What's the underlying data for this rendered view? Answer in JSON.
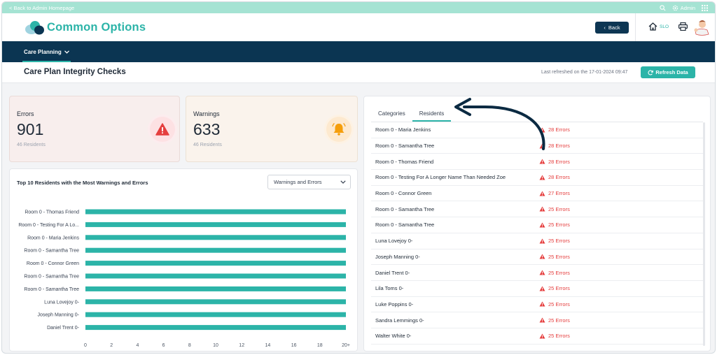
{
  "topbar": {
    "back_label": "< Back to Admin Homepage",
    "admin_label": "Admin"
  },
  "header": {
    "brand": "Common Options",
    "back_button": "Back",
    "home_label": "SLO"
  },
  "nav": {
    "items": [
      {
        "label": "Care Planning"
      }
    ]
  },
  "page": {
    "title": "Care Plan Integrity Checks",
    "last_refreshed": "Last refreshed on the 17-01-2024 09:47",
    "refresh_button": "Refresh Data"
  },
  "kpis": {
    "errors": {
      "label": "Errors",
      "value": "901",
      "sub": "46 Residents"
    },
    "warnings": {
      "label": "Warnings",
      "value": "633",
      "sub": "46 Residents"
    }
  },
  "chart_card": {
    "title": "Top 10 Residents with the Most Warnings and Errors",
    "filter": "Warnings and Errors"
  },
  "chart_data": {
    "type": "bar",
    "orientation": "horizontal",
    "categories": [
      "Room 0 - Thomas Friend",
      "Room 0 - Testing For A Lo...",
      "Room 0 - Maria Jenkins",
      "Room 0 - Samantha Tree",
      "Room 0 - Connor Green",
      "Room 0 - Samantha Tree",
      "Room 0 - Samantha Tree",
      "Luna Lovejoy 0-",
      "Joseph Manning 0-",
      "Daniel Trent 0-"
    ],
    "values": [
      20,
      20,
      20,
      20,
      20,
      20,
      20,
      20,
      20,
      20
    ],
    "x_ticks": [
      "0",
      "2",
      "4",
      "6",
      "8",
      "10",
      "12",
      "14",
      "16",
      "18",
      "20+"
    ],
    "xlim": [
      0,
      20
    ],
    "grid": false,
    "bar_color": "#2cb4a8"
  },
  "residents": {
    "tabs": [
      {
        "label": "Categories"
      },
      {
        "label": "Residents"
      }
    ],
    "rows": [
      {
        "name": "Room 0 - Maria Jenkins",
        "errors": "28 Errors"
      },
      {
        "name": "Room 0 - Samantha Tree",
        "errors": "28 Errors"
      },
      {
        "name": "Room 0 - Thomas Friend",
        "errors": "28 Errors"
      },
      {
        "name": "Room 0 - Testing For A Longer Name Than Needed Zoe",
        "errors": "28 Errors"
      },
      {
        "name": "Room 0 - Connor Green",
        "errors": "27 Errors"
      },
      {
        "name": "Room 0 - Samantha Tree",
        "errors": "25 Errors"
      },
      {
        "name": "Room 0 - Samantha Tree",
        "errors": "25 Errors"
      },
      {
        "name": "Luna Lovejoy 0-",
        "errors": "25 Errors"
      },
      {
        "name": "Joseph Manning 0-",
        "errors": "25 Errors"
      },
      {
        "name": "Daniel Trent 0-",
        "errors": "25 Errors"
      },
      {
        "name": "Lila Toms 0-",
        "errors": "25 Errors"
      },
      {
        "name": "Luke Poppins 0-",
        "errors": "25 Errors"
      },
      {
        "name": "Sandra Lemmings 0-",
        "errors": "25 Errors"
      },
      {
        "name": "Walter White 0-",
        "errors": "25 Errors"
      }
    ]
  },
  "colors": {
    "accent": "#2cb4a8",
    "navy": "#0b3552",
    "error": "#e53e3e",
    "warning": "#f59e0b"
  }
}
